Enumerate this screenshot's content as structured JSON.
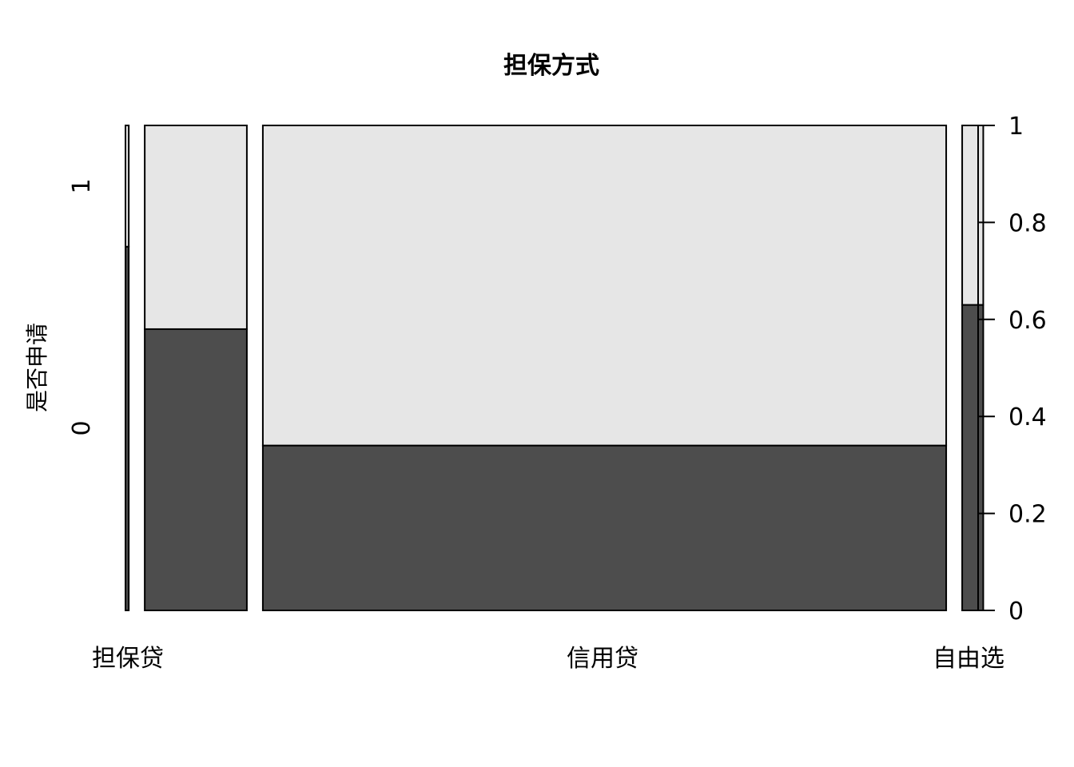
{
  "chart_data": {
    "type": "spineplot",
    "title": "担保方式",
    "xlabel": "",
    "ylabel": "是否申请",
    "categories": [
      "",
      "担保贷",
      "信用贷",
      "自由选"
    ],
    "x_tick_labels_shown": [
      "担保贷",
      "信用贷",
      "自由选"
    ],
    "category_width_fraction": [
      0.0041,
      0.1269,
      0.8492,
      0.0262
    ],
    "series": [
      {
        "name": "0",
        "values": [
          0.75,
          0.58,
          0.34,
          0.63
        ]
      },
      {
        "name": "1",
        "values": [
          0.25,
          0.42,
          0.66,
          0.37
        ]
      }
    ],
    "y_left_ticks": [
      "0",
      "1"
    ],
    "y_right_ticks": [
      "0",
      "0.2",
      "0.4",
      "0.6",
      "0.8",
      "1"
    ],
    "ylim": [
      0,
      1
    ],
    "colors": {
      "level_0": "#4d4d4d",
      "level_1": "#e6e6e6",
      "border": "#000000"
    }
  }
}
